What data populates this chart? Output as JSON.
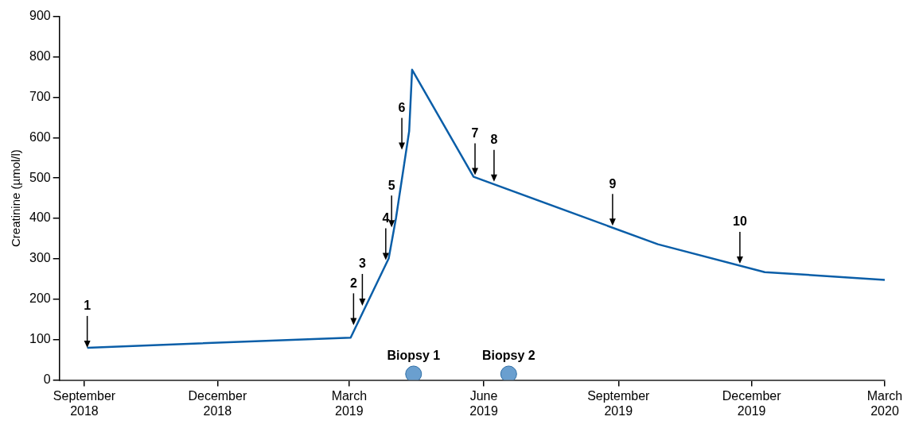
{
  "chart_data": {
    "type": "line",
    "ylabel": "Creatinine (µmol/l)",
    "x": [
      "2018-09-03",
      "2019-03-02",
      "2019-03-28",
      "2019-04-02",
      "2019-04-11",
      "2019-04-13",
      "2019-05-25",
      "2019-09-28",
      "2019-12-10",
      "2020-03-01"
    ],
    "series": [
      {
        "color": "#0a5ea8",
        "values": [
          80,
          105,
          301,
          401,
          616,
          768,
          503,
          336,
          267,
          248
        ]
      },
      {
        "type": "scatter",
        "name": "Biopsy 1",
        "color": "#6a9fcf",
        "marker": "circle",
        "x": [
          "2019-04-14"
        ],
        "values": [
          15
        ]
      },
      {
        "type": "scatter",
        "name": "Biopsy 2",
        "color": "#6a9fcf",
        "marker": "circle",
        "x": [
          "2019-06-18"
        ],
        "values": [
          15
        ]
      }
    ],
    "xlim": [
      "2018-08-15",
      "2020-03-01"
    ],
    "xticks": [
      {
        "value": "2018-09-01",
        "label": "September 2018"
      },
      {
        "value": "2018-12-01",
        "label": "December 2018"
      },
      {
        "value": "2019-03-01",
        "label": "March 2019"
      },
      {
        "value": "2019-06-01",
        "label": "June 2019"
      },
      {
        "value": "2019-09-01",
        "label": "September 2019"
      },
      {
        "value": "2019-12-01",
        "label": "December 2019"
      },
      {
        "value": "2020-03-01",
        "label": "March 2020"
      }
    ],
    "ylim": [
      0,
      900
    ],
    "yticks": [
      0,
      100,
      200,
      300,
      400,
      500,
      600,
      700,
      800,
      900
    ],
    "grid": false,
    "legend": false,
    "annotations": [
      {
        "text": "1",
        "x": "2018-09-03",
        "y": 80
      },
      {
        "text": "2",
        "x": "2019-03-04",
        "y": 136
      },
      {
        "text": "3",
        "x": "2019-03-10",
        "y": 184
      },
      {
        "text": "4",
        "x": "2019-03-26",
        "y": 297
      },
      {
        "text": "5",
        "x": "2019-03-30",
        "y": 378
      },
      {
        "text": "6",
        "x": "2019-04-06",
        "y": 570
      },
      {
        "text": "7",
        "x": "2019-05-26",
        "y": 507
      },
      {
        "text": "8",
        "x": "2019-06-08",
        "y": 491
      },
      {
        "text": "9",
        "x": "2019-08-28",
        "y": 382
      },
      {
        "text": "10",
        "x": "2019-11-23",
        "y": 288
      }
    ]
  }
}
